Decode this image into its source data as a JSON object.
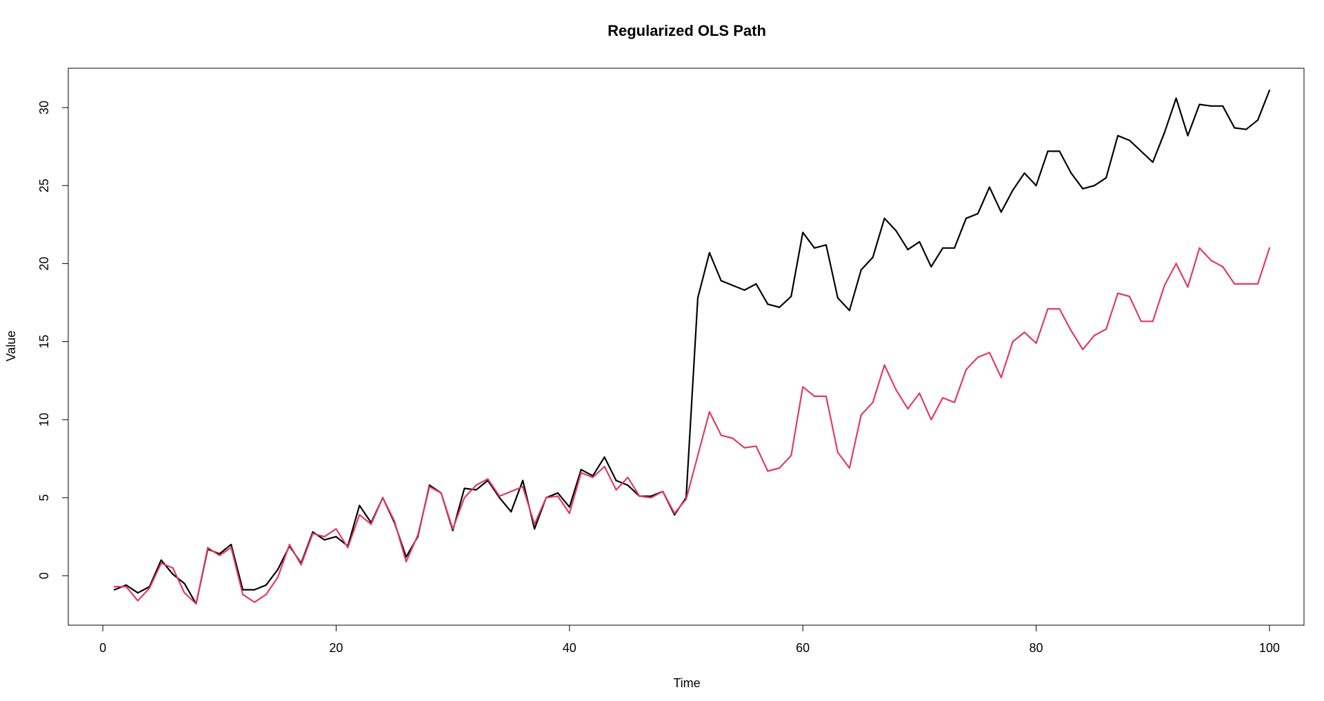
{
  "chart_data": {
    "type": "line",
    "title": "Regularized OLS Path",
    "xlabel": "Time",
    "ylabel": "Value",
    "xlim": [
      -2.96,
      102.96
    ],
    "ylim": [
      -3.17,
      32.52
    ],
    "x_ticks": [
      0,
      20,
      40,
      60,
      80,
      100
    ],
    "y_ticks": [
      0,
      5,
      10,
      15,
      20,
      25,
      30
    ],
    "grid": false,
    "legend": "none",
    "x": [
      1,
      2,
      3,
      4,
      5,
      6,
      7,
      8,
      9,
      10,
      11,
      12,
      13,
      14,
      15,
      16,
      17,
      18,
      19,
      20,
      21,
      22,
      23,
      24,
      25,
      26,
      27,
      28,
      29,
      30,
      31,
      32,
      33,
      34,
      35,
      36,
      37,
      38,
      39,
      40,
      41,
      42,
      43,
      44,
      45,
      46,
      47,
      48,
      49,
      50,
      51,
      52,
      53,
      54,
      55,
      56,
      57,
      58,
      59,
      60,
      61,
      62,
      63,
      64,
      65,
      66,
      67,
      68,
      69,
      70,
      71,
      72,
      73,
      74,
      75,
      76,
      77,
      78,
      79,
      80,
      81,
      82,
      83,
      84,
      85,
      86,
      87,
      88,
      89,
      90,
      91,
      92,
      93,
      94,
      95,
      96,
      97,
      98,
      99,
      100
    ],
    "series": [
      {
        "color": "#000000",
        "values": [
          -0.9,
          -0.6,
          -1.1,
          -0.7,
          1.0,
          0.1,
          -0.5,
          -1.8,
          1.7,
          1.4,
          2.0,
          -0.9,
          -0.9,
          -0.6,
          0.4,
          1.9,
          0.8,
          2.8,
          2.3,
          2.5,
          1.9,
          4.5,
          3.4,
          5.0,
          3.4,
          1.2,
          2.5,
          5.8,
          5.3,
          2.9,
          5.6,
          5.5,
          6.1,
          5.0,
          4.1,
          6.1,
          3.0,
          5.0,
          5.3,
          4.4,
          6.8,
          6.4,
          7.6,
          6.1,
          5.8,
          5.1,
          5.1,
          5.4,
          3.9,
          5.0,
          17.8,
          20.7,
          18.9,
          18.6,
          18.3,
          18.7,
          17.4,
          17.2,
          17.9,
          22.0,
          21.0,
          21.2,
          17.8,
          17.0,
          19.6,
          20.4,
          22.9,
          22.1,
          20.9,
          21.4,
          19.8,
          21.0,
          21.0,
          22.9,
          23.2,
          24.9,
          23.3,
          24.7,
          25.8,
          25.0,
          27.2,
          27.2,
          25.8,
          24.8,
          25.0,
          25.5,
          28.2,
          27.9,
          27.2,
          26.5,
          28.4,
          30.6,
          28.2,
          30.2,
          30.1,
          30.1,
          28.7,
          28.6,
          29.2,
          31.1
        ]
      },
      {
        "color": "#df3c5f",
        "values": [
          -0.7,
          -0.7,
          -1.6,
          -0.8,
          0.8,
          0.5,
          -1.1,
          -1.8,
          1.8,
          1.3,
          1.8,
          -1.2,
          -1.7,
          -1.2,
          -0.1,
          2.0,
          0.7,
          2.7,
          2.5,
          3.0,
          1.8,
          3.9,
          3.3,
          5.0,
          3.5,
          0.9,
          2.6,
          5.7,
          5.3,
          3.0,
          5.0,
          5.8,
          6.2,
          5.1,
          5.4,
          5.7,
          3.3,
          5.0,
          5.1,
          4.0,
          6.6,
          6.3,
          7.0,
          5.5,
          6.3,
          5.1,
          5.0,
          5.4,
          4.0,
          4.9,
          7.7,
          10.5,
          9.0,
          8.8,
          8.2,
          8.3,
          6.7,
          6.9,
          7.7,
          12.1,
          11.5,
          11.5,
          7.9,
          6.9,
          10.3,
          11.1,
          13.5,
          11.9,
          10.7,
          11.7,
          10.0,
          11.4,
          11.1,
          13.2,
          14.0,
          14.3,
          12.7,
          15.0,
          15.6,
          14.9,
          17.1,
          17.1,
          15.7,
          14.5,
          15.4,
          15.8,
          18.1,
          17.9,
          16.3,
          16.3,
          18.6,
          20.0,
          18.5,
          21.0,
          20.2,
          19.8,
          18.7,
          18.7,
          18.7,
          21.0
        ]
      }
    ]
  }
}
